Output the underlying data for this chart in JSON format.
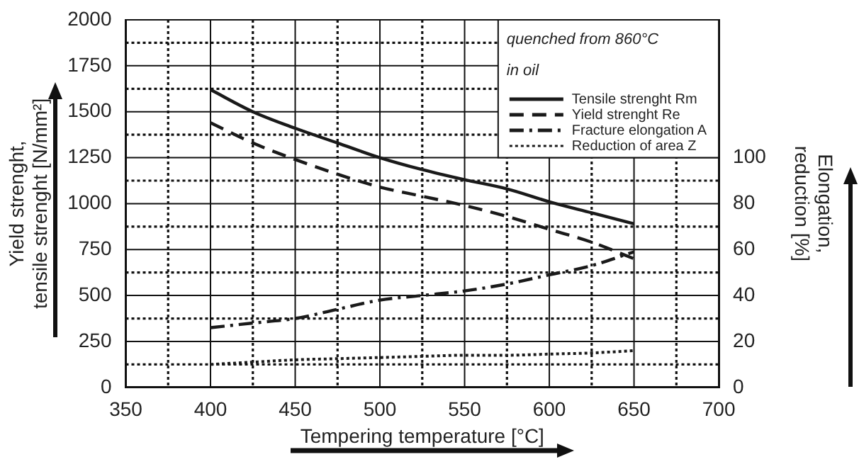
{
  "chart_data": {
    "type": "line",
    "xlabel": "Tempering temperature [°C]",
    "ylabel": "Yield strenght,\ntensile strenght [N/mm²]",
    "y2label": "Elongation,\nreduction [%]",
    "annotations": [
      "quenched from 860°C",
      "in oil"
    ],
    "x": [
      400,
      425,
      450,
      475,
      500,
      525,
      550,
      575,
      600,
      625,
      650
    ],
    "series": [
      {
        "name": "Tensile strenght Rm",
        "color": "#1a1a1a",
        "line_style": "solid",
        "values": [
          1620,
          1500,
          1410,
          1330,
          1250,
          1185,
          1130,
          1080,
          1010,
          950,
          890
        ]
      },
      {
        "name": "Yield strenght Re",
        "color": "#1a1a1a",
        "line_style": "dashed",
        "values": [
          1440,
          1330,
          1240,
          1160,
          1090,
          1040,
          990,
          930,
          860,
          790,
          700
        ]
      },
      {
        "name": "Fracture elongation A",
        "color": "#1a1a1a",
        "line_style": "dashdot",
        "axis": "y2",
        "values": [
          26,
          28,
          30,
          34,
          38,
          40,
          42,
          45,
          49,
          53,
          59
        ]
      },
      {
        "name": "Reduction of area Z",
        "color": "#1a1a1a",
        "line_style": "dotted",
        "axis": "y2",
        "values": [
          10,
          11,
          12,
          12.5,
          13,
          13.5,
          14,
          14,
          14.5,
          15,
          16
        ]
      }
    ],
    "xlim": [
      350,
      700
    ],
    "xticks": [
      350,
      {
        "value": 375,
        "label": null
      },
      400,
      {
        "value": 425,
        "label": null
      },
      450,
      {
        "value": 475,
        "label": null
      },
      500,
      {
        "value": 525,
        "label": null
      },
      550,
      {
        "value": 575,
        "label": null
      },
      600,
      {
        "value": 625,
        "label": null
      },
      650,
      {
        "value": 675,
        "label": null
      },
      700
    ],
    "ylim": [
      0,
      2000
    ],
    "yticks": [
      0,
      {
        "value": 125,
        "label": null
      },
      250,
      {
        "value": 375,
        "label": null
      },
      500,
      {
        "value": 625,
        "label": null
      },
      750,
      {
        "value": 875,
        "label": null
      },
      1000,
      {
        "value": 1125,
        "label": null
      },
      1250,
      {
        "value": 1375,
        "label": null
      },
      1500,
      {
        "value": 1625,
        "label": null
      },
      1750,
      {
        "value": 1875,
        "label": null
      },
      2000
    ],
    "y2lim": [
      0,
      160
    ],
    "y2ticks": [
      0,
      20,
      40,
      60,
      80,
      100
    ],
    "grid": true,
    "legend": "top right",
    "marker": "none"
  }
}
